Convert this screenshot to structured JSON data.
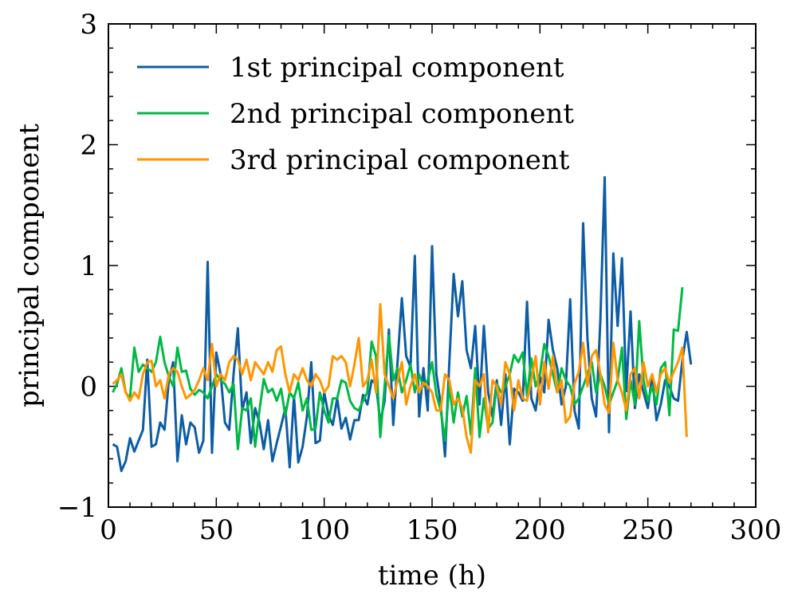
{
  "chart_data": {
    "type": "line",
    "title": "",
    "xlabel": "time (h)",
    "ylabel": "principal component",
    "xlim": [
      0,
      300
    ],
    "ylim": [
      -1,
      3
    ],
    "xticks": [
      0,
      50,
      100,
      150,
      200,
      250,
      300
    ],
    "yticks": [
      -1,
      0,
      1,
      2,
      3
    ],
    "xtick_labels": [
      "0",
      "50",
      "100",
      "150",
      "200",
      "250",
      "300"
    ],
    "ytick_labels": [
      "−1",
      "0",
      "1",
      "2",
      "3"
    ],
    "grid": false,
    "legend": "top-left",
    "x_start": 2,
    "x_step": 2,
    "series": [
      {
        "name": "1st principal component",
        "color": "#0C5DA5",
        "values": [
          -0.48,
          -0.5,
          -0.7,
          -0.62,
          -0.43,
          -0.54,
          -0.45,
          -0.36,
          0.22,
          -0.5,
          -0.48,
          -0.3,
          -0.36,
          0.05,
          0.2,
          -0.62,
          -0.24,
          -0.48,
          -0.3,
          -0.34,
          -0.55,
          -0.45,
          1.03,
          -0.55,
          0.28,
          0.1,
          -0.3,
          -0.36,
          0.1,
          0.48,
          -0.2,
          -0.05,
          -0.47,
          -0.18,
          -0.3,
          -0.52,
          -0.28,
          -0.62,
          -0.47,
          -0.33,
          -0.18,
          -0.67,
          -0.08,
          -0.63,
          -0.5,
          -0.25,
          0.2,
          -0.47,
          -0.45,
          -0.05,
          -0.24,
          -0.32,
          -0.1,
          -0.35,
          -0.26,
          -0.44,
          -0.28,
          -0.28,
          -0.07,
          -0.15,
          0.05,
          0.02,
          -0.3,
          -0.12,
          0.47,
          -0.32,
          0.2,
          0.73,
          0.25,
          0.16,
          1.08,
          -0.25,
          0.15,
          -0.2,
          1.16,
          0.1,
          -0.15,
          -0.58,
          0.2,
          0.93,
          0.58,
          0.87,
          0.3,
          0.15,
          0.5,
          -0.15,
          0.5,
          -0.05,
          -0.25,
          0.05,
          -0.32,
          0.1,
          -0.48,
          -0.02,
          -0.05,
          -0.12,
          0.7,
          -0.1,
          -0.2,
          0.08,
          -0.05,
          0.55,
          0.3,
          0.15,
          -0.15,
          0.0,
          0.72,
          -0.2,
          -0.35,
          1.35,
          0.4,
          -0.1,
          -0.25,
          0.55,
          1.73,
          -0.38,
          1.1,
          0.5,
          1.06,
          -0.04,
          0.62,
          -0.18,
          0.1,
          -0.05,
          -0.18,
          0.08,
          -0.28,
          -0.15,
          0.05,
          0.0,
          -0.1,
          -0.12,
          0.22,
          0.45,
          0.18
        ]
      },
      {
        "name": "2nd principal component",
        "color": "#00B945",
        "values": [
          -0.05,
          0.02,
          0.15,
          -0.05,
          -0.1,
          0.32,
          0.12,
          0.18,
          0.15,
          0.12,
          0.2,
          0.41,
          0.2,
          0.08,
          0.0,
          0.32,
          0.12,
          0.13,
          -0.02,
          -0.07,
          -0.03,
          -0.05,
          -0.1,
          0.0,
          0.1,
          0.05,
          0.02,
          -0.05,
          0.02,
          -0.52,
          -0.18,
          -0.2,
          -0.1,
          -0.5,
          -0.2,
          0.06,
          -0.05,
          -0.02,
          -0.12,
          -0.02,
          -0.24,
          -0.05,
          -0.1,
          0.03,
          -0.2,
          -0.1,
          -0.36,
          -0.35,
          -0.05,
          -0.2,
          -0.3,
          -0.1,
          -0.1,
          0.05,
          0.03,
          -0.12,
          -0.18,
          -0.2,
          -0.12,
          -0.05,
          0.37,
          0.25,
          -0.42,
          0.0,
          0.42,
          0.05,
          0.15,
          -0.05,
          0.05,
          0.18,
          -0.05,
          0.1,
          0.0,
          0.05,
          0.2,
          -0.07,
          -0.2,
          -0.45,
          0.02,
          -0.3,
          -0.05,
          -0.25,
          -0.08,
          -0.4,
          0.15,
          -0.42,
          -0.1,
          -0.35,
          -0.3,
          0.02,
          -0.05,
          0.0,
          0.1,
          0.26,
          0.2,
          0.28,
          -0.08,
          0.23,
          0.0,
          0.1,
          0.35,
          0.25,
          0.1,
          -0.05,
          0.15,
          0.05,
          0.0,
          -0.15,
          -0.1,
          0.0,
          0.1,
          0.2,
          -0.05,
          0.1,
          0.0,
          -0.15,
          -0.05,
          0.05,
          0.32,
          -0.27,
          0.05,
          -0.15,
          0.54,
          0.05,
          -0.12,
          0.0,
          -0.15,
          0.15,
          0.2,
          -0.24,
          0.47,
          0.46,
          0.82
        ]
      },
      {
        "name": "3rd principal component",
        "color": "#FF9500",
        "values": [
          0.02,
          0.05,
          0.1,
          -0.05,
          -0.12,
          -0.05,
          -0.1,
          0.1,
          0.2,
          0.21,
          0.0,
          0.05,
          -0.1,
          0.1,
          0.15,
          0.12,
          0.0,
          -0.1,
          -0.07,
          -0.03,
          0.05,
          0.15,
          0.05,
          0.35,
          0.0,
          0.1,
          0.05,
          0.2,
          0.25,
          0.22,
          0.1,
          0.22,
          0.05,
          0.2,
          0.15,
          0.1,
          0.2,
          0.12,
          0.3,
          0.33,
          0.1,
          -0.05,
          0.1,
          0.05,
          0.15,
          0.05,
          0.0,
          0.1,
          0.05,
          -0.05,
          0.0,
          0.25,
          0.22,
          0.25,
          0.2,
          0.0,
          0.18,
          0.4,
          0.0,
          0.05,
          0.22,
          -0.05,
          0.68,
          0.1,
          0.0,
          -0.1,
          0.05,
          0.2,
          -0.15,
          0.0,
          0.1,
          -0.05,
          0.03,
          0.0,
          -0.05,
          -0.2,
          -0.2,
          0.1,
          0.05,
          -0.15,
          -0.1,
          -0.18,
          -0.42,
          -0.55,
          0.05,
          0.0,
          0.1,
          -0.38,
          0.05,
          0.0,
          -0.15,
          0.2,
          0.1,
          -0.2,
          0.05,
          -0.1,
          -0.12,
          0.05,
          0.25,
          -0.15,
          0.2,
          -0.02,
          0.25,
          -0.05,
          0.05,
          -0.3,
          -0.25,
          0.02,
          0.12,
          0.36,
          0.0,
          0.25,
          0.3,
          0.1,
          -0.15,
          -0.22,
          0.36,
          0.05,
          -0.05,
          -0.2,
          0.1,
          0.15,
          -0.1,
          0.2,
          0.0,
          0.1,
          -0.05,
          0.1,
          0.15,
          0.03,
          0.12,
          0.2,
          0.32,
          -0.42
        ]
      }
    ]
  }
}
